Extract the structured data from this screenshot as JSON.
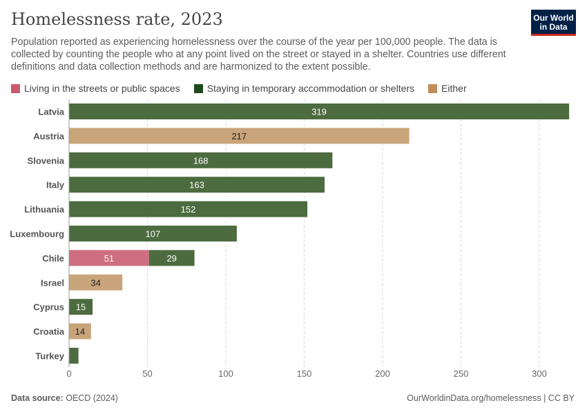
{
  "title": "Homelessness rate, 2023",
  "subtitle": "Population reported as experiencing homelessness over the course of the year per 100,000 people. The data is collected by counting the people who at any point lived on the street or stayed in a shelter. Countries use different definitions and data collection methods and are harmonized to the extent possible.",
  "logo": {
    "line1": "Our World",
    "line2": "in Data",
    "bg_color": "#002147",
    "accent_color": "#ce261e"
  },
  "footer": {
    "source_label": "Data source:",
    "source_value": "OECD (2024)",
    "right": "OurWorldinData.org/homelessness | CC BY"
  },
  "chart_data": {
    "type": "bar",
    "orientation": "horizontal",
    "stacked": true,
    "categories": [
      "Latvia",
      "Austria",
      "Slovenia",
      "Italy",
      "Lithuania",
      "Luxembourg",
      "Chile",
      "Israel",
      "Cyprus",
      "Croatia",
      "Turkey"
    ],
    "series": [
      {
        "name": "Living in the streets or public spaces",
        "color": "#cf6e80",
        "values": [
          0,
          0,
          0,
          0,
          0,
          0,
          51,
          0,
          0,
          0,
          0
        ]
      },
      {
        "name": "Staying in temporary accommodation or shelters",
        "color": "#4c6b3f",
        "values": [
          319,
          0,
          168,
          163,
          152,
          107,
          29,
          0,
          15,
          0,
          6
        ]
      },
      {
        "name": "Either",
        "color": "#c9a47a",
        "values": [
          0,
          217,
          0,
          0,
          0,
          0,
          0,
          34,
          0,
          14,
          0
        ]
      }
    ],
    "data_labels": [
      [
        "",
        "",
        "",
        "",
        "",
        "",
        "51",
        "",
        "",
        "",
        ""
      ],
      [
        "319",
        "",
        "168",
        "163",
        "152",
        "107",
        "29",
        "",
        "15",
        "",
        ""
      ],
      [
        "",
        "217",
        "",
        "",
        "",
        "",
        "",
        "34",
        "",
        "14",
        ""
      ]
    ],
    "legend_swatch_colors": [
      "#ca5a6c",
      "#1f4a1c",
      "#c08d5a"
    ],
    "x_ticks": [
      0,
      50,
      100,
      150,
      200,
      250,
      300
    ],
    "xlim": [
      0,
      320
    ],
    "grid": "vertical dashed",
    "legend_position": "top-left"
  }
}
